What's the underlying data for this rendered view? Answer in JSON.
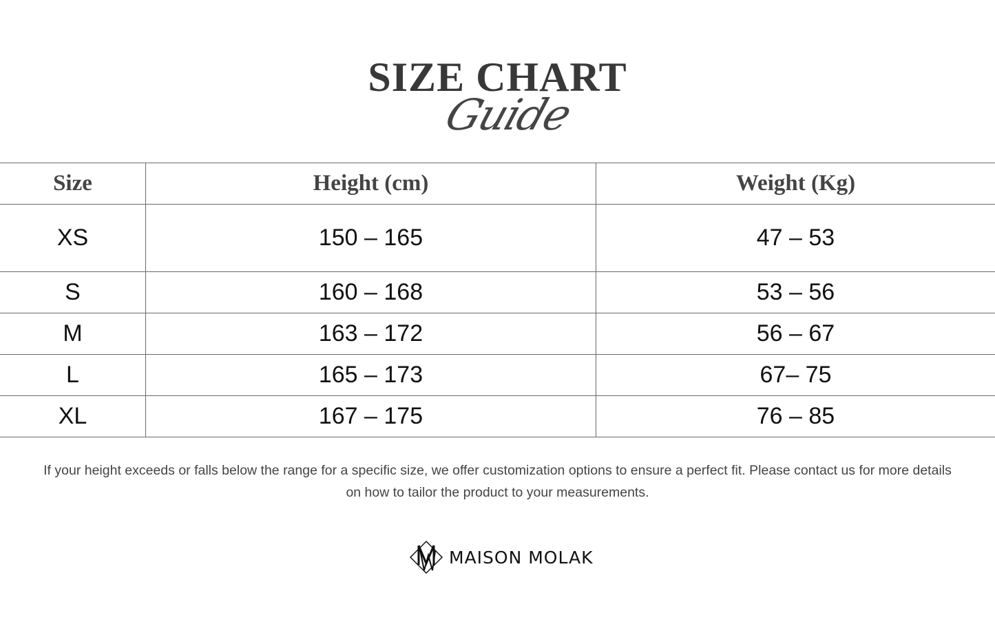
{
  "title": "SIZE CHART",
  "subtitle": "Guide",
  "table": {
    "headers": [
      "Size",
      "Height (cm)",
      "Weight (Kg)"
    ],
    "rows": [
      [
        "XS",
        "150 – 165",
        "47 – 53"
      ],
      [
        "S",
        "160 – 168",
        "53 – 56"
      ],
      [
        "M",
        "163 – 172",
        "56 – 67"
      ],
      [
        "L",
        "165 – 173",
        "67– 75"
      ],
      [
        "XL",
        "167 – 175",
        "76 – 85"
      ]
    ]
  },
  "note": "If your height exceeds or falls below the range for a specific size, we offer customization options to ensure a perfect fit. Please contact us for more details on how to tailor the product to your measurements.",
  "brand": {
    "name": "MAISON MOLAK",
    "icon": "diamond-mw-monogram-icon"
  }
}
